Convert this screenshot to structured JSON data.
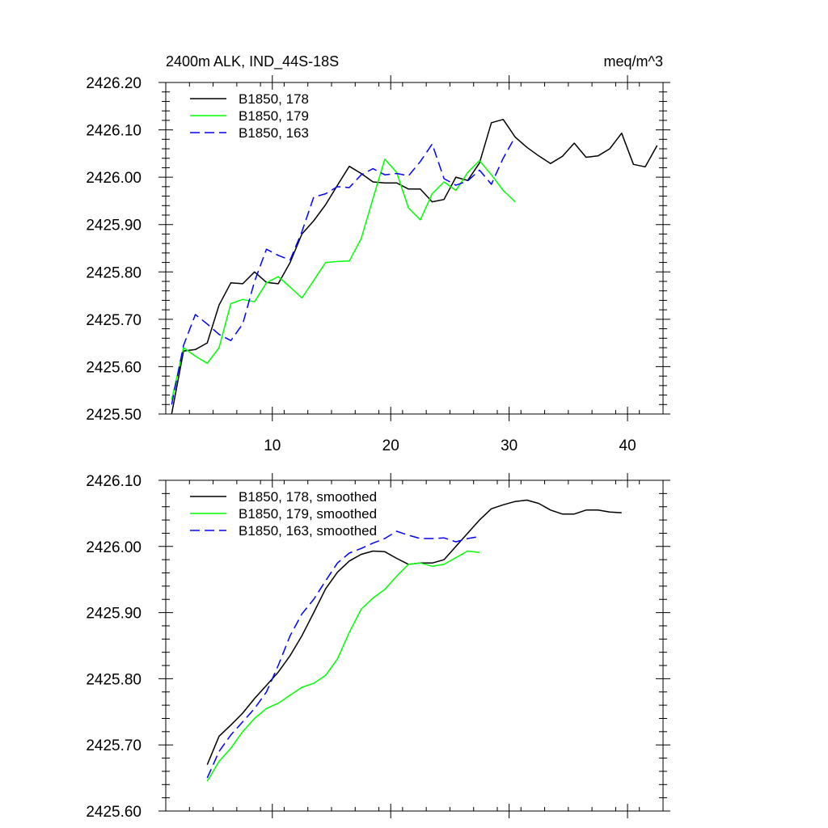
{
  "chart_data": [
    {
      "type": "line",
      "title": "2400m ALK, IND_44S-18S",
      "units": "meq/m^3",
      "xlim": [
        1,
        43
      ],
      "ylim": [
        2425.5,
        2426.2
      ],
      "xticks": [
        10,
        20,
        30,
        40
      ],
      "xtick_labels": [
        "10",
        "20",
        "30",
        "40"
      ],
      "yticks": [
        2425.5,
        2425.6,
        2425.7,
        2425.8,
        2425.9,
        2426.0,
        2426.1,
        2426.2
      ],
      "ytick_labels": [
        "2425.50",
        "2425.60",
        "2425.70",
        "2425.80",
        "2425.90",
        "2426.00",
        "2426.10",
        "2426.20"
      ],
      "legend_position": "top-left",
      "series": [
        {
          "name": "B1850, 178",
          "color": "#000000",
          "dash": "solid",
          "x": [
            1.5,
            2.5,
            3.5,
            4.5,
            5.5,
            6.5,
            7.5,
            8.5,
            9.5,
            10.5,
            11.5,
            12.5,
            13.5,
            14.5,
            15.5,
            16.5,
            17.5,
            18.5,
            19.5,
            20.5,
            21.5,
            22.5,
            23.5,
            24.5,
            25.5,
            26.5,
            27.5,
            28.5,
            29.5,
            30.5,
            31.5,
            32.5,
            33.5,
            34.5,
            35.5,
            36.5,
            37.5,
            38.5,
            39.5,
            40.5,
            41.5,
            42.5
          ],
          "y": [
            2425.5,
            2425.633,
            2425.636,
            2425.65,
            2425.73,
            2425.777,
            2425.775,
            2425.8,
            2425.778,
            2425.775,
            2425.82,
            2425.88,
            2425.908,
            2425.942,
            2425.983,
            2426.023,
            2426.008,
            2425.99,
            2425.988,
            2425.988,
            2425.975,
            2425.975,
            2425.948,
            2425.953,
            2426.0,
            2425.993,
            2426.03,
            2426.115,
            2426.122,
            2426.085,
            2426.063,
            2426.045,
            2426.029,
            2426.044,
            2426.072,
            2426.042,
            2426.045,
            2426.06,
            2426.093,
            2426.027,
            2426.022,
            2426.067
          ]
        },
        {
          "name": "B1850, 179",
          "color": "#00ff00",
          "dash": "solid",
          "x": [
            1.5,
            2.5,
            3.5,
            4.5,
            5.5,
            6.5,
            7.5,
            8.5,
            9.5,
            10.5,
            11.5,
            12.5,
            13.5,
            14.5,
            15.5,
            16.5,
            17.5,
            18.5,
            19.5,
            20.5,
            21.5,
            22.5,
            23.5,
            24.5,
            25.5,
            26.5,
            27.5,
            28.5,
            29.5,
            30.5
          ],
          "y": [
            2425.53,
            2425.64,
            2425.622,
            2425.607,
            2425.64,
            2425.733,
            2425.742,
            2425.737,
            2425.777,
            2425.79,
            2425.768,
            2425.745,
            2425.782,
            2425.82,
            2425.822,
            2425.823,
            2425.87,
            2425.955,
            2426.038,
            2426.01,
            2425.935,
            2425.91,
            2425.965,
            2425.99,
            2425.972,
            2426.01,
            2426.035,
            2426.005,
            2425.972,
            2425.948
          ]
        },
        {
          "name": "B1850, 163",
          "color": "#0000ff",
          "dash": "dashed",
          "x": [
            1.5,
            2.5,
            3.5,
            4.5,
            5.5,
            6.5,
            7.5,
            8.5,
            9.5,
            10.5,
            11.5,
            12.5,
            13.5,
            14.5,
            15.5,
            16.5,
            17.5,
            18.5,
            19.5,
            20.5,
            21.5,
            22.5,
            23.5,
            24.5,
            25.5,
            26.5,
            27.5,
            28.5,
            29.5,
            30.5
          ],
          "y": [
            2425.52,
            2425.645,
            2425.71,
            2425.69,
            2425.668,
            2425.655,
            2425.69,
            2425.78,
            2425.848,
            2425.835,
            2425.825,
            2425.885,
            2425.958,
            2425.965,
            2425.98,
            2425.978,
            2426.005,
            2426.018,
            2426.005,
            2426.008,
            2426.003,
            2426.033,
            2426.07,
            2425.997,
            2425.983,
            2425.992,
            2426.015,
            2425.985,
            2426.04,
            2426.085
          ]
        }
      ]
    },
    {
      "type": "line",
      "title": "",
      "xlim": [
        1,
        43
      ],
      "ylim": [
        2425.6,
        2426.1
      ],
      "xticks": [
        10,
        20,
        30,
        40
      ],
      "yticks": [
        2425.6,
        2425.7,
        2425.8,
        2425.9,
        2426.0,
        2426.1
      ],
      "ytick_labels": [
        "2425.60",
        "2425.70",
        "2425.80",
        "2425.90",
        "2426.00",
        "2426.10"
      ],
      "legend_position": "top-left",
      "series": [
        {
          "name": "B1850, 178, smoothed",
          "color": "#000000",
          "dash": "solid",
          "x": [
            4.5,
            5.5,
            6.5,
            7.5,
            8.5,
            9.5,
            10.5,
            11.5,
            12.5,
            13.5,
            14.5,
            15.5,
            16.5,
            17.5,
            18.5,
            19.5,
            20.5,
            21.5,
            22.5,
            23.5,
            24.5,
            25.5,
            26.5,
            27.5,
            28.5,
            29.5,
            30.5,
            31.5,
            32.5,
            33.5,
            34.5,
            35.5,
            36.5,
            37.5,
            38.5,
            39.5
          ],
          "y": [
            2425.67,
            2425.713,
            2425.73,
            2425.748,
            2425.77,
            2425.79,
            2425.81,
            2425.835,
            2425.865,
            2425.9,
            2425.936,
            2425.961,
            2425.978,
            2425.988,
            2425.993,
            2425.992,
            2425.982,
            2425.973,
            2425.975,
            2425.975,
            2425.98,
            2426.0,
            2426.02,
            2426.04,
            2426.057,
            2426.063,
            2426.068,
            2426.07,
            2426.065,
            2426.055,
            2426.049,
            2426.049,
            2426.055,
            2426.055,
            2426.052,
            2426.051
          ]
        },
        {
          "name": "B1850, 179, smoothed",
          "color": "#00ff00",
          "dash": "solid",
          "x": [
            4.5,
            5.5,
            6.5,
            7.5,
            8.5,
            9.5,
            10.5,
            11.5,
            12.5,
            13.5,
            14.5,
            15.5,
            16.5,
            17.5,
            18.5,
            19.5,
            20.5,
            21.5,
            22.5,
            23.5,
            24.5,
            25.5,
            26.5,
            27.5
          ],
          "y": [
            2425.645,
            2425.675,
            2425.695,
            2425.72,
            2425.74,
            2425.755,
            2425.763,
            2425.775,
            2425.787,
            2425.793,
            2425.805,
            2425.83,
            2425.87,
            2425.905,
            2425.922,
            2425.935,
            2425.955,
            2425.973,
            2425.975,
            2425.97,
            2425.973,
            2425.983,
            2425.993,
            2425.991
          ]
        },
        {
          "name": "B1850, 163, smoothed",
          "color": "#0000ff",
          "dash": "dashed",
          "x": [
            4.5,
            5.5,
            6.5,
            7.5,
            8.5,
            9.5,
            10.5,
            11.5,
            12.5,
            13.5,
            14.5,
            15.5,
            16.5,
            17.5,
            18.5,
            19.5,
            20.5,
            21.5,
            22.5,
            23.5,
            24.5,
            25.5,
            26.5,
            27.5
          ],
          "y": [
            2425.65,
            2425.69,
            2425.715,
            2425.735,
            2425.755,
            2425.78,
            2425.82,
            2425.865,
            2425.898,
            2425.92,
            2425.948,
            2425.975,
            2425.99,
            2425.997,
            2426.005,
            2426.012,
            2426.023,
            2426.017,
            2426.012,
            2426.012,
            2426.013,
            2426.007,
            2426.012,
            2426.015
          ]
        }
      ]
    }
  ]
}
